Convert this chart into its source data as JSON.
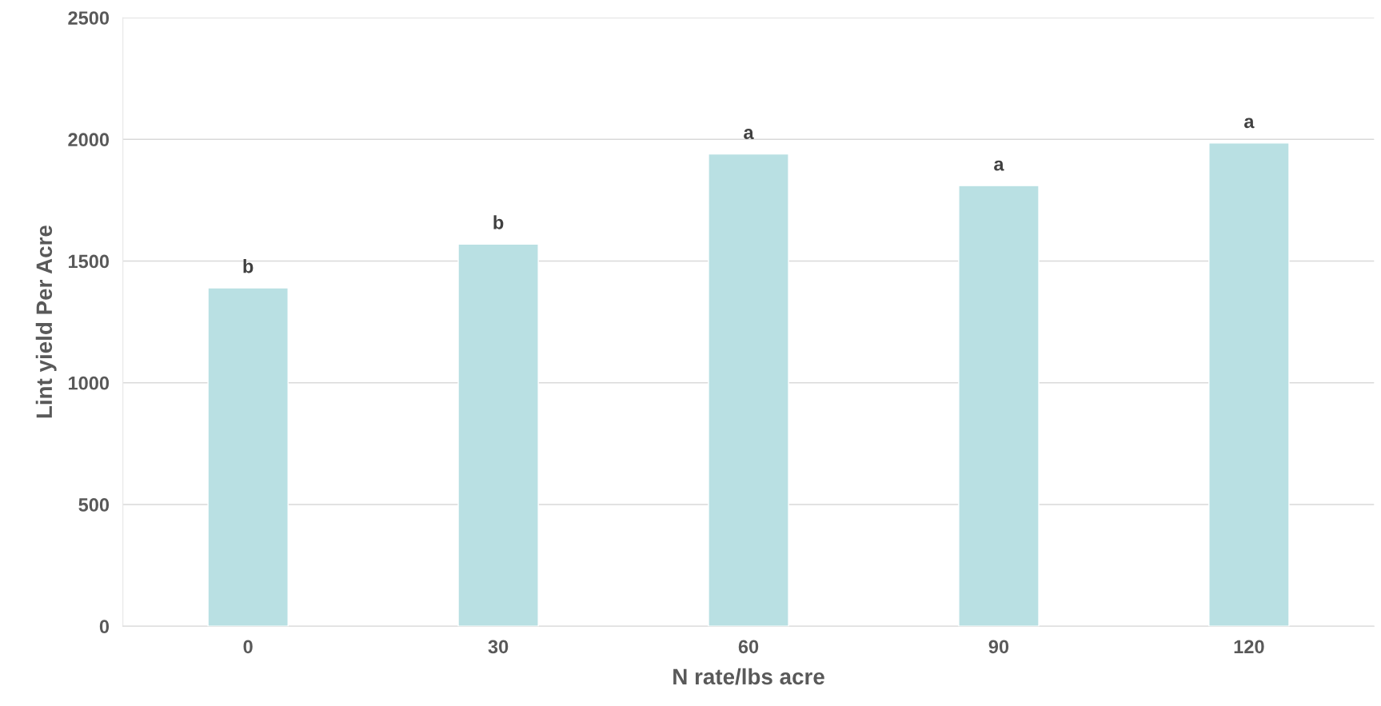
{
  "chart_data": {
    "type": "bar",
    "xlabel": "N rate/lbs acre",
    "ylabel": "Lint yield Per Acre",
    "categories": [
      "0",
      "30",
      "60",
      "90",
      "120"
    ],
    "values": [
      1390,
      1570,
      1940,
      1810,
      1985
    ],
    "color": "#b9e0e3",
    "ylim": [
      0,
      2500
    ],
    "yticks": [
      0,
      500,
      1000,
      1500,
      2000,
      2500
    ],
    "grid": "y",
    "annotations": [
      {
        "text": "b",
        "x": "0",
        "y": 1390
      },
      {
        "text": "b",
        "x": "30",
        "y": 1570
      },
      {
        "text": "a",
        "x": "60",
        "y": 1940
      },
      {
        "text": "a",
        "x": "90",
        "y": 1810
      },
      {
        "text": "a",
        "x": "120",
        "y": 1985
      }
    ]
  }
}
